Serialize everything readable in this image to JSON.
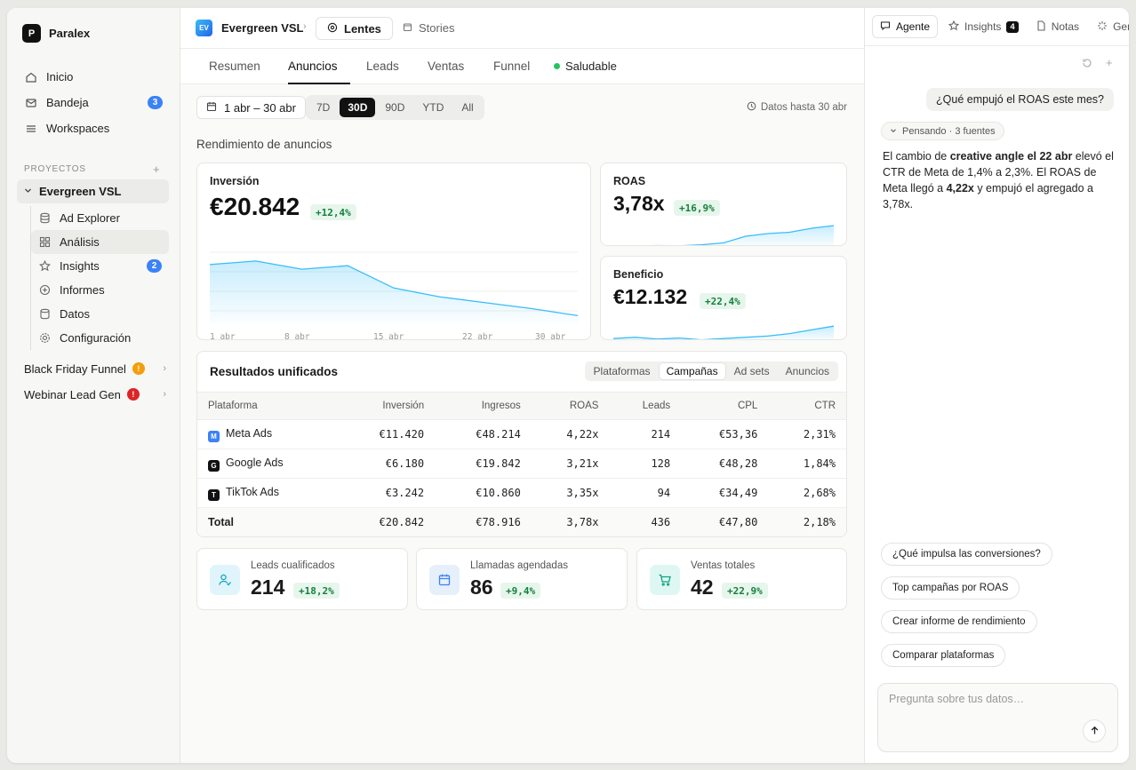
{
  "brand": {
    "logo": "P",
    "name": "Paralex"
  },
  "nav": [
    {
      "label": "Inicio",
      "icon": "home-icon"
    },
    {
      "label": "Bandeja",
      "icon": "inbox-icon",
      "badge": "3"
    },
    {
      "label": "Workspaces",
      "icon": "menu-icon"
    }
  ],
  "projects": {
    "section_label": "PROYECTOS",
    "add": "+",
    "active": "Evergreen VSL",
    "sub_items": [
      {
        "label": "Ad Explorer",
        "icon": "database-icon"
      },
      {
        "label": "Análisis",
        "icon": "grid-icon"
      },
      {
        "label": "Insights",
        "icon": "star-icon",
        "badge": "2"
      },
      {
        "label": "Informes",
        "icon": "plus-circle-icon"
      },
      {
        "label": "Datos",
        "icon": "database-icon"
      },
      {
        "label": "Configuración",
        "icon": "gear-icon"
      }
    ],
    "others": [
      {
        "label": "Black Friday Funnel",
        "badge": "!",
        "badge_color": "#f59e0b"
      },
      {
        "label": "Webinar Lead Gen",
        "badge": "!",
        "badge_color": "#dc2626"
      }
    ]
  },
  "breadcrumb": {
    "logo": "EV",
    "title": "Evergreen VSL",
    "sep": "›",
    "lens": "Lentes",
    "stories": "Stories"
  },
  "tabs": [
    "Resumen",
    "Anuncios",
    "Leads",
    "Ventas",
    "Funnel"
  ],
  "health": "Saludable",
  "filters": {
    "date_range": "1 abr – 30 abr",
    "ranges": [
      "7D",
      "30D",
      "90D",
      "YTD",
      "All"
    ],
    "active_range": "30D",
    "data_until": "Datos hasta 30 abr"
  },
  "section_title": "Rendimiento de anuncios",
  "metrics": {
    "inversion": {
      "name": "Inversión",
      "value": "€20.842",
      "delta": "+12,4%"
    },
    "roas": {
      "name": "ROAS",
      "value": "3,78x",
      "delta": "+16,9%"
    },
    "beneficio": {
      "name": "Beneficio",
      "value": "€12.132",
      "delta": "+22,4%"
    }
  },
  "chart_data": [
    {
      "type": "area",
      "x": [
        "1 abr",
        "4 abr",
        "8 abr",
        "11 abr",
        "15 abr",
        "18 abr",
        "22 abr",
        "26 abr",
        "30 abr"
      ],
      "x_tick_labels": [
        "1 abr",
        "8 abr",
        "15 abr",
        "22 abr",
        "30 abr"
      ],
      "values": [
        100,
        106,
        92,
        98,
        60,
        45,
        35,
        25,
        13
      ],
      "color": "#38bdf8"
    },
    {
      "type": "area",
      "values": [
        2,
        3,
        5,
        4,
        8,
        15,
        40,
        50,
        55,
        70,
        80
      ],
      "color": "#38bdf8"
    },
    {
      "type": "area",
      "values": [
        10,
        15,
        8,
        12,
        5,
        10,
        15,
        20,
        30,
        45,
        60
      ],
      "color": "#38bdf8"
    }
  ],
  "results": {
    "title": "Resultados unificados",
    "segments": [
      "Plataformas",
      "Campañas",
      "Ad sets",
      "Anuncios"
    ],
    "active_segment": "Campañas",
    "columns": [
      "Plataforma",
      "Inversión",
      "Ingresos",
      "ROAS",
      "Leads",
      "CPL",
      "CTR"
    ],
    "rows": [
      {
        "icon": "M",
        "icon_color": "#3b82f6",
        "cells": [
          "Meta Ads",
          "€11.420",
          "€48.214",
          "4,22x",
          "214",
          "€53,36",
          "2,31%"
        ]
      },
      {
        "icon": "G",
        "icon_color": "#111111",
        "cells": [
          "Google Ads",
          "€6.180",
          "€19.842",
          "3,21x",
          "128",
          "€48,28",
          "1,84%"
        ]
      },
      {
        "icon": "T",
        "icon_color": "#111111",
        "cells": [
          "TikTok Ads",
          "€3.242",
          "€10.860",
          "3,35x",
          "94",
          "€34,49",
          "2,68%"
        ]
      }
    ],
    "total": [
      "Total",
      "€20.842",
      "€78.916",
      "3,78x",
      "436",
      "€47,80",
      "2,18%"
    ]
  },
  "kpis": [
    {
      "label": "Leads cualificados",
      "value": "214",
      "delta": "+18,2%",
      "icon": "user-check-icon"
    },
    {
      "label": "Llamadas agendadas",
      "value": "86",
      "delta": "+9,4%",
      "icon": "calendar-icon"
    },
    {
      "label": "Ventas totales",
      "value": "42",
      "delta": "+22,9%",
      "icon": "cart-icon"
    }
  ],
  "panel": {
    "tabs": [
      {
        "label": "Agente",
        "icon": "chat-icon"
      },
      {
        "label": "Insights",
        "icon": "star-icon",
        "count": "4"
      },
      {
        "label": "Notas",
        "icon": "file-icon"
      },
      {
        "label": "Genera",
        "icon": "sparkle-icon"
      }
    ],
    "user_message": "¿Qué empujó el ROAS este mes?",
    "thinking": "Pensando · 3 fuentes",
    "reply": {
      "p1": "El cambio de ",
      "b1": "creative angle el 22 abr",
      "p2": " elevó el CTR de Meta de 1,4% a 2,3%. El ROAS de Meta llegó a ",
      "b2": "4,22x",
      "p3": " y empujó el agregado a 3,78x."
    },
    "suggestions": [
      "¿Qué impulsa las conversiones?",
      "Top campañas por ROAS",
      "Crear informe de rendimiento",
      "Comparar plataformas"
    ],
    "composer_placeholder": "Pregunta sobre tus datos…"
  }
}
